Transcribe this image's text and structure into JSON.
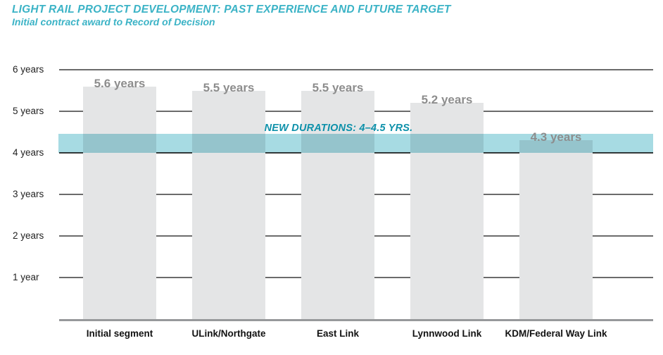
{
  "header": {
    "title": "LIGHT RAIL PROJECT DEVELOPMENT: PAST EXPERIENCE AND FUTURE TARGET",
    "subtitle": "Initial contract award to Record of Decision"
  },
  "chart_data": {
    "type": "bar",
    "title": "Light rail project development: past experience and future target",
    "subtitle": "Initial contract award to Record of Decision",
    "categories": [
      "Initial segment",
      "ULink/Northgate",
      "East Link",
      "Lynnwood Link",
      "KDM/Federal Way Link"
    ],
    "values": [
      5.6,
      5.5,
      5.5,
      5.2,
      4.3
    ],
    "bar_labels": [
      "5.6 years",
      "5.5 years",
      "5.5 years",
      "5.2 years",
      "4.3 years"
    ],
    "unit": "years",
    "y_ticks": [
      6,
      5,
      4,
      3,
      2,
      1
    ],
    "y_tick_labels": [
      "6 years",
      "5 years",
      "4 years",
      "3 years",
      "2 years",
      "1 year"
    ],
    "ylim": [
      0,
      6.3
    ],
    "grid": "horizontal",
    "legend": "none",
    "target_band": {
      "label": "NEW DURATIONS: 4–4.5 YRS.",
      "from_years": 4,
      "to_years": 4.5
    }
  },
  "colors": {
    "title_teal": "#3bb3c6",
    "band_teal": "#a7dbe3",
    "band_label_teal": "#0e91aa",
    "bar_gray": "#e4e5e6",
    "value_label_gray": "#8d8d8d",
    "gridline_gray": "#6b6b6b",
    "axis_gray": "#97999b",
    "category_black": "#121212"
  }
}
